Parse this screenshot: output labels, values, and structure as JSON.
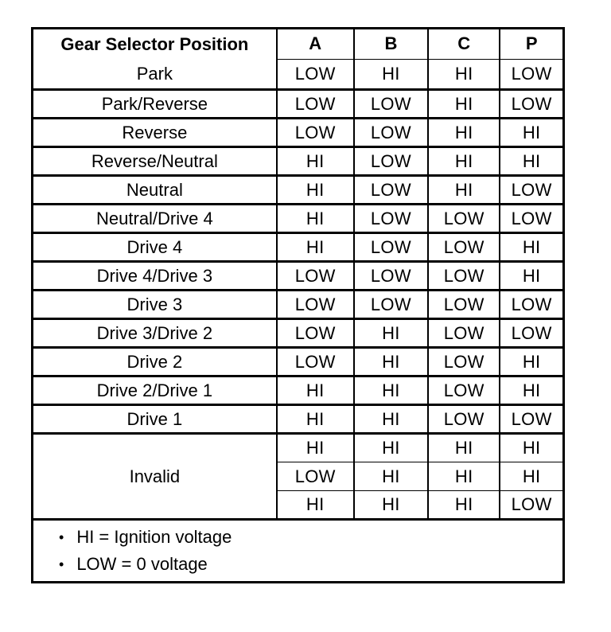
{
  "table": {
    "header": {
      "position_label": "Gear Selector Position",
      "columns": [
        "A",
        "B",
        "C",
        "P"
      ]
    },
    "rows": [
      {
        "label": "Park",
        "values": [
          "LOW",
          "HI",
          "HI",
          "LOW"
        ]
      },
      {
        "label": "Park/Reverse",
        "values": [
          "LOW",
          "LOW",
          "HI",
          "LOW"
        ]
      },
      {
        "label": "Reverse",
        "values": [
          "LOW",
          "LOW",
          "HI",
          "HI"
        ]
      },
      {
        "label": "Reverse/Neutral",
        "values": [
          "HI",
          "LOW",
          "HI",
          "HI"
        ]
      },
      {
        "label": "Neutral",
        "values": [
          "HI",
          "LOW",
          "HI",
          "LOW"
        ]
      },
      {
        "label": "Neutral/Drive 4",
        "values": [
          "HI",
          "LOW",
          "LOW",
          "LOW"
        ]
      },
      {
        "label": "Drive 4",
        "values": [
          "HI",
          "LOW",
          "LOW",
          "HI"
        ]
      },
      {
        "label": "Drive 4/Drive 3",
        "values": [
          "LOW",
          "LOW",
          "LOW",
          "HI"
        ]
      },
      {
        "label": "Drive 3",
        "values": [
          "LOW",
          "LOW",
          "LOW",
          "LOW"
        ]
      },
      {
        "label": "Drive 3/Drive 2",
        "values": [
          "LOW",
          "HI",
          "LOW",
          "LOW"
        ]
      },
      {
        "label": "Drive 2",
        "values": [
          "LOW",
          "HI",
          "LOW",
          "HI"
        ]
      },
      {
        "label": "Drive 2/Drive 1",
        "values": [
          "HI",
          "HI",
          "LOW",
          "HI"
        ]
      },
      {
        "label": "Drive 1",
        "values": [
          "HI",
          "HI",
          "LOW",
          "LOW"
        ]
      }
    ],
    "invalid_group": {
      "label": "Invalid",
      "rows": [
        [
          "HI",
          "HI",
          "HI",
          "HI"
        ],
        [
          "LOW",
          "HI",
          "HI",
          "HI"
        ],
        [
          "HI",
          "HI",
          "HI",
          "LOW"
        ]
      ]
    },
    "notes": [
      "HI = Ignition voltage",
      "LOW = 0 voltage"
    ],
    "bullet_glyph": "•"
  },
  "colors": {
    "ink": "#000000",
    "paper": "#ffffff"
  }
}
